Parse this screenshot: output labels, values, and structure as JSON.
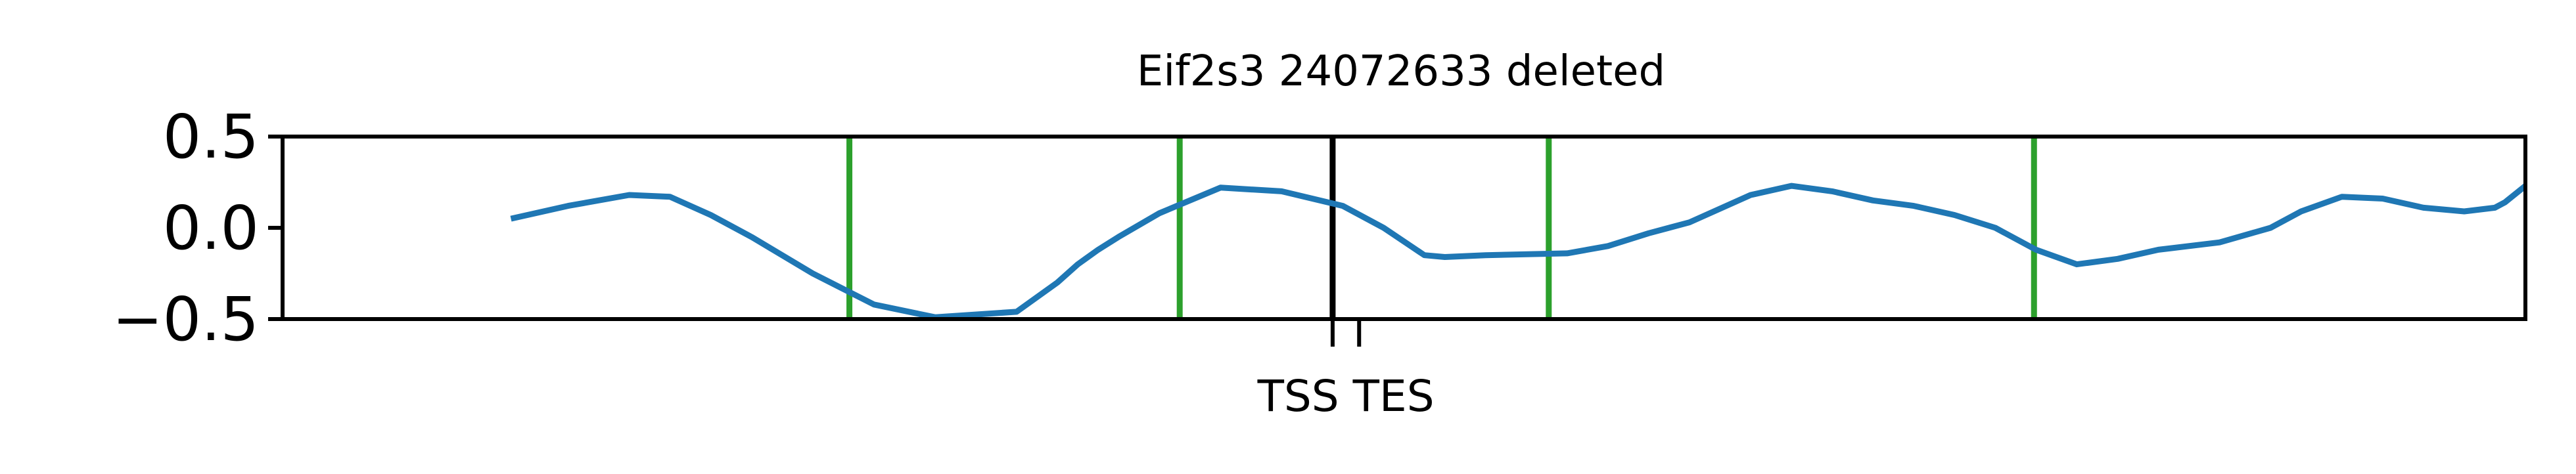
{
  "chart_data": {
    "type": "line",
    "title": "Eif2s3 24072633 deleted",
    "xlabel": "",
    "ylabel": "",
    "ylim": [
      -0.5,
      0.5
    ],
    "xlim": [
      -0.1,
      1.0
    ],
    "y_ticks": [
      {
        "value": 0.5,
        "label": "0.5"
      },
      {
        "value": 0.0,
        "label": "0.0"
      },
      {
        "value": -0.5,
        "label": "−0.5"
      }
    ],
    "x_ticks": [
      {
        "value": 0.415,
        "label": "TSS"
      },
      {
        "value": 0.428,
        "label": "TES"
      }
    ],
    "grid": false,
    "series": [
      {
        "color": "#1f77b4",
        "x": [
          0.012,
          0.04,
          0.07,
          0.09,
          0.11,
          0.13,
          0.16,
          0.19,
          0.22,
          0.26,
          0.28,
          0.29,
          0.3,
          0.31,
          0.33,
          0.36,
          0.39,
          0.42,
          0.44,
          0.46,
          0.47,
          0.49,
          0.53,
          0.55,
          0.57,
          0.59,
          0.62,
          0.64,
          0.66,
          0.68,
          0.7,
          0.72,
          0.74,
          0.76,
          0.78,
          0.8,
          0.82,
          0.85,
          0.875,
          0.89,
          0.91,
          0.93,
          0.95,
          0.97,
          0.985,
          0.99,
          1.0
        ],
        "y": [
          0.05,
          0.12,
          0.18,
          0.17,
          0.07,
          -0.05,
          -0.25,
          -0.42,
          -0.49,
          -0.46,
          -0.3,
          -0.2,
          -0.12,
          -0.05,
          0.08,
          0.22,
          0.2,
          0.12,
          0.0,
          -0.15,
          -0.16,
          -0.15,
          -0.14,
          -0.1,
          -0.03,
          0.03,
          0.18,
          0.23,
          0.2,
          0.15,
          0.12,
          0.07,
          0.0,
          -0.12,
          -0.2,
          -0.17,
          -0.12,
          -0.08,
          0.0,
          0.09,
          0.17,
          0.16,
          0.11,
          0.09,
          0.11,
          0.14,
          0.23
        ]
      }
    ],
    "vlines": [
      {
        "x": 0.178,
        "color": "#2ca02c"
      },
      {
        "x": 0.34,
        "color": "#2ca02c"
      },
      {
        "x": 0.415,
        "color": "#000000"
      },
      {
        "x": 0.521,
        "color": "#2ca02c"
      },
      {
        "x": 0.759,
        "color": "#2ca02c"
      }
    ]
  }
}
